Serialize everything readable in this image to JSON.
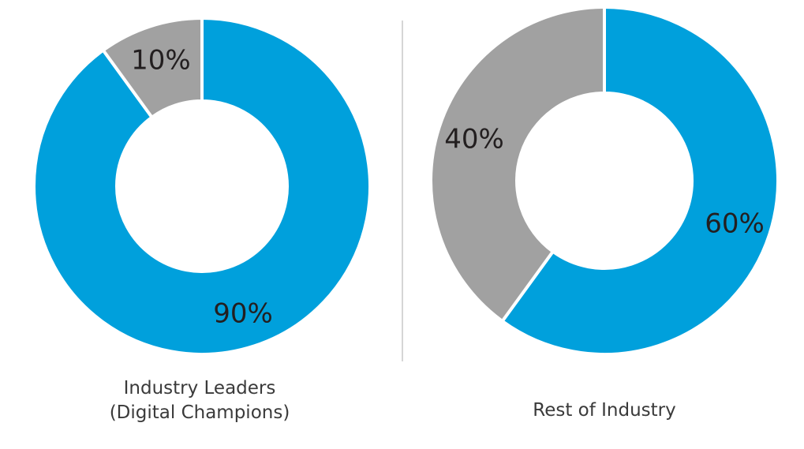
{
  "colors": {
    "primary": "#00a0dc",
    "secondary": "#a1a1a1",
    "divider": "#c8c8c8",
    "text": "#231f20"
  },
  "chart_data": [
    {
      "type": "pie",
      "variant": "donut",
      "caption_lines": [
        "Industry Leaders",
        "(Digital Champions)"
      ],
      "slices": [
        {
          "value": 90,
          "label": "90%",
          "color": "#00a0dc"
        },
        {
          "value": 10,
          "label": "10%",
          "color": "#a1a1a1"
        }
      ]
    },
    {
      "type": "pie",
      "variant": "donut",
      "caption_lines": [
        "Rest of Industry"
      ],
      "slices": [
        {
          "value": 60,
          "label": "60%",
          "color": "#00a0dc"
        },
        {
          "value": 40,
          "label": "40%",
          "color": "#a1a1a1"
        }
      ]
    }
  ]
}
